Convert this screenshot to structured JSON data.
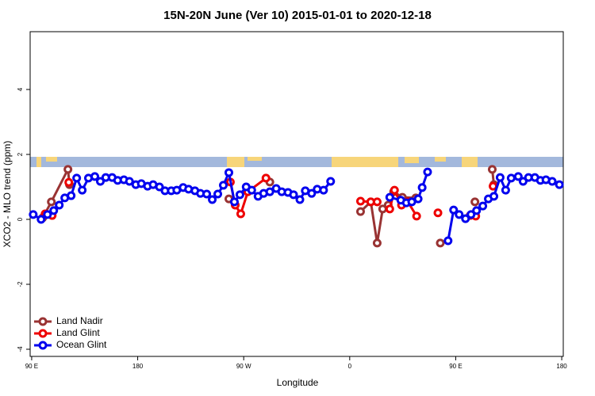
{
  "chart_data": {
    "type": "line",
    "title": "15N-20N June (Ver 10)   2015-01-01 to 2020-12-18",
    "x_label": "Longitude",
    "y_label": "XCO2 - MLO trend (ppm)",
    "xlim": [
      88.7,
      541.3
    ],
    "ylim": [
      -4.22,
      5.78
    ],
    "xticks": [
      {
        "value": 90,
        "label": "90 E"
      },
      180,
      {
        "value": 270,
        "label": "90 W"
      },
      {
        "value": 360,
        "label": "0"
      },
      {
        "value": 450,
        "label": "90 E"
      },
      {
        "value": 540,
        "label": "180"
      }
    ],
    "yticks": [
      -4,
      -2,
      0,
      2,
      4
    ],
    "legend": "bottom-left",
    "series": [
      {
        "name": "Land Nadir",
        "color": "#993333",
        "x": [
          99.4,
          106.7,
          120.8,
          122.1,
          null,
          257.4,
          null,
          292.2,
          null,
          369.2,
          377.9,
          383.3,
          388.0,
          392.7,
          397.3,
          404.7,
          416.1,
          null,
          436.9,
          null,
          466.3,
          null,
          481.0,
          482.4
        ],
        "values": [
          0.05,
          0.54,
          1.54,
          1.07,
          null,
          0.63,
          null,
          1.15,
          null,
          0.24,
          0.54,
          -0.73,
          0.32,
          0.44,
          0.85,
          0.68,
          0.66,
          null,
          -0.73,
          null,
          0.54,
          null,
          1.54,
          1.07
        ]
      },
      {
        "name": "Land Glint",
        "color": "#ee0000",
        "x": [
          101.4,
          107.4,
          null,
          121.5,
          null,
          258.7,
          262.8,
          267.5,
          273.5,
          288.9,
          null,
          369.2,
          377.9,
          383.3,
          null,
          394.0,
          398.0,
          404.0,
          409.4,
          416.8,
          null,
          434.9,
          null,
          462.3,
          467.0,
          null,
          481.7
        ],
        "values": [
          0.17,
          0.12,
          null,
          1.14,
          null,
          1.15,
          0.44,
          0.17,
          0.85,
          1.27,
          null,
          0.56,
          0.54,
          0.54,
          null,
          0.32,
          0.9,
          0.44,
          0.54,
          0.1,
          null,
          0.2,
          null,
          0.12,
          0.1,
          null,
          1.02
        ]
      },
      {
        "name": "Ocean Glint",
        "color": "#0000ee",
        "x": [
          91.3,
          98.0,
          103.4,
          108.7,
          113.4,
          118.1,
          123.5,
          128.2,
          132.9,
          138.2,
          143.6,
          148.3,
          152.9,
          158.3,
          163.0,
          168.3,
          173.0,
          178.4,
          183.1,
          188.4,
          193.1,
          198.5,
          203.2,
          208.5,
          213.2,
          218.6,
          223.2,
          228.6,
          233.3,
          238.6,
          243.3,
          248.0,
          252.7,
          257.4,
          262.1,
          266.8,
          272.1,
          276.8,
          282.2,
          286.9,
          292.2,
          297.6,
          302.3,
          307.6,
          312.3,
          317.7,
          322.3,
          327.7,
          332.4,
          337.8,
          343.8,
          null,
          394.0,
          403.4,
          408.1,
          412.7,
          418.1,
          421.5,
          426.1,
          null,
          443.5,
          448.2,
          452.9,
          458.3,
          463.0,
          467.7,
          473.0,
          477.7,
          482.4,
          487.7,
          492.4,
          497.1,
          503.1,
          507.2,
          511.8,
          517.2,
          521.9,
          526.6,
          531.9,
          538.0
        ],
        "values": [
          0.15,
          0.0,
          0.15,
          0.27,
          0.44,
          0.66,
          0.73,
          1.27,
          0.9,
          1.27,
          1.32,
          1.17,
          1.29,
          1.29,
          1.2,
          1.22,
          1.17,
          1.07,
          1.1,
          1.02,
          1.07,
          1.0,
          0.88,
          0.88,
          0.9,
          0.98,
          0.93,
          0.88,
          0.8,
          0.78,
          0.61,
          0.78,
          1.05,
          1.44,
          0.54,
          0.76,
          1.0,
          0.9,
          0.71,
          0.8,
          0.85,
          0.95,
          0.85,
          0.83,
          0.76,
          0.61,
          0.88,
          0.8,
          0.93,
          0.9,
          1.17,
          null,
          0.68,
          0.59,
          0.51,
          0.54,
          0.63,
          0.98,
          1.46,
          null,
          -0.66,
          0.29,
          0.15,
          0.02,
          0.15,
          0.27,
          0.41,
          0.63,
          0.71,
          1.29,
          0.9,
          1.27,
          1.32,
          1.17,
          1.29,
          1.29,
          1.2,
          1.22,
          1.17,
          1.07
        ]
      }
    ]
  }
}
